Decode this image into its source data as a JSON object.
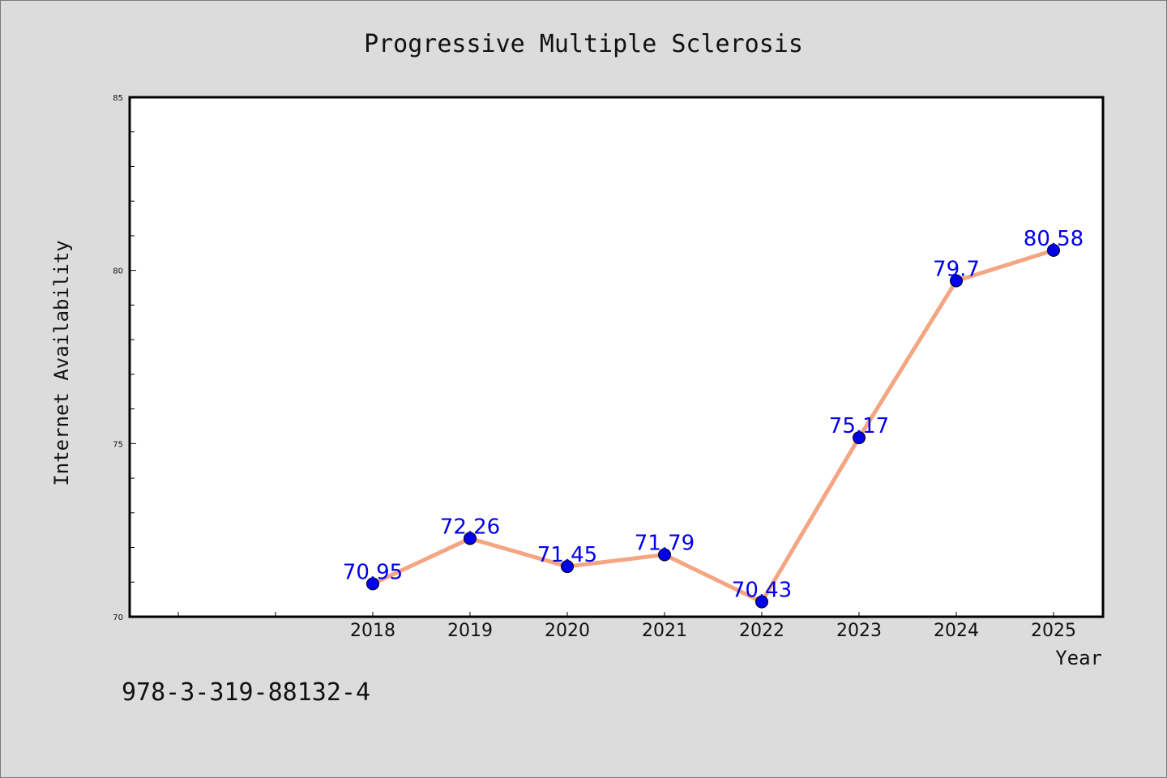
{
  "chart_data": {
    "type": "line",
    "title": "Progressive Multiple Sclerosis",
    "xlabel": "Year",
    "ylabel": "Internet Availability",
    "x": [
      "2018",
      "2019",
      "2020",
      "2021",
      "2022",
      "2023",
      "2024",
      "2025"
    ],
    "series": [
      {
        "values": [
          70.95,
          72.26,
          71.45,
          71.79,
          70.43,
          75.17,
          79.7,
          80.58
        ],
        "labels": [
          "70.95",
          "72.26",
          "71.45",
          "71.79",
          "70.43",
          "75.17",
          "79.7",
          "80.58"
        ]
      }
    ],
    "ylim": [
      70,
      85
    ],
    "yticks": [
      70,
      75,
      80,
      85
    ],
    "ytick_labels": [
      "70",
      "75",
      "80",
      "85"
    ],
    "grid": false,
    "legend": "none",
    "colors": {
      "line": "#f4a582",
      "marker": "#0000ee",
      "data_label": "#0000ee",
      "background": "#dcdcdc",
      "plot_background": "#ffffff"
    }
  },
  "footnote": "978-3-319-88132-4"
}
